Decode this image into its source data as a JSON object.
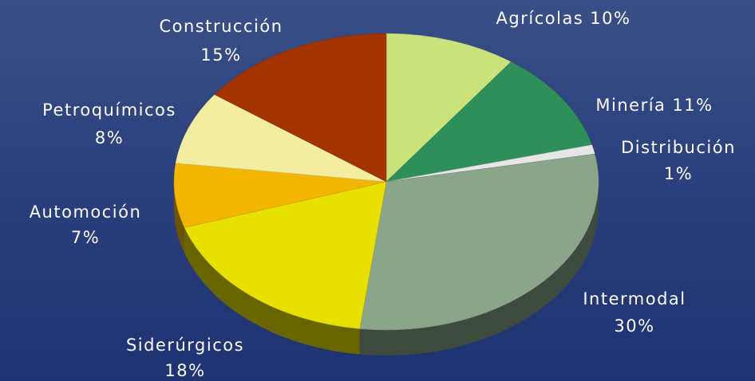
{
  "chart_data": {
    "type": "pie",
    "categories": [
      "Agrícolas",
      "Minería",
      "Distribución",
      "Intermodal",
      "Siderúrgicos",
      "Automoción",
      "Petroquímicos",
      "Construcción"
    ],
    "values": [
      10,
      11,
      1,
      30,
      18,
      7,
      8,
      15
    ],
    "value_labels": [
      "10%",
      "11%",
      "1%",
      "30%",
      "18%",
      "7%",
      "8%",
      "15%"
    ],
    "colors": [
      "#c9e27c",
      "#2f8f5a",
      "#e6e6e6",
      "#8aa58a",
      "#e8e000",
      "#f2b600",
      "#f3eda0",
      "#a33400"
    ]
  }
}
